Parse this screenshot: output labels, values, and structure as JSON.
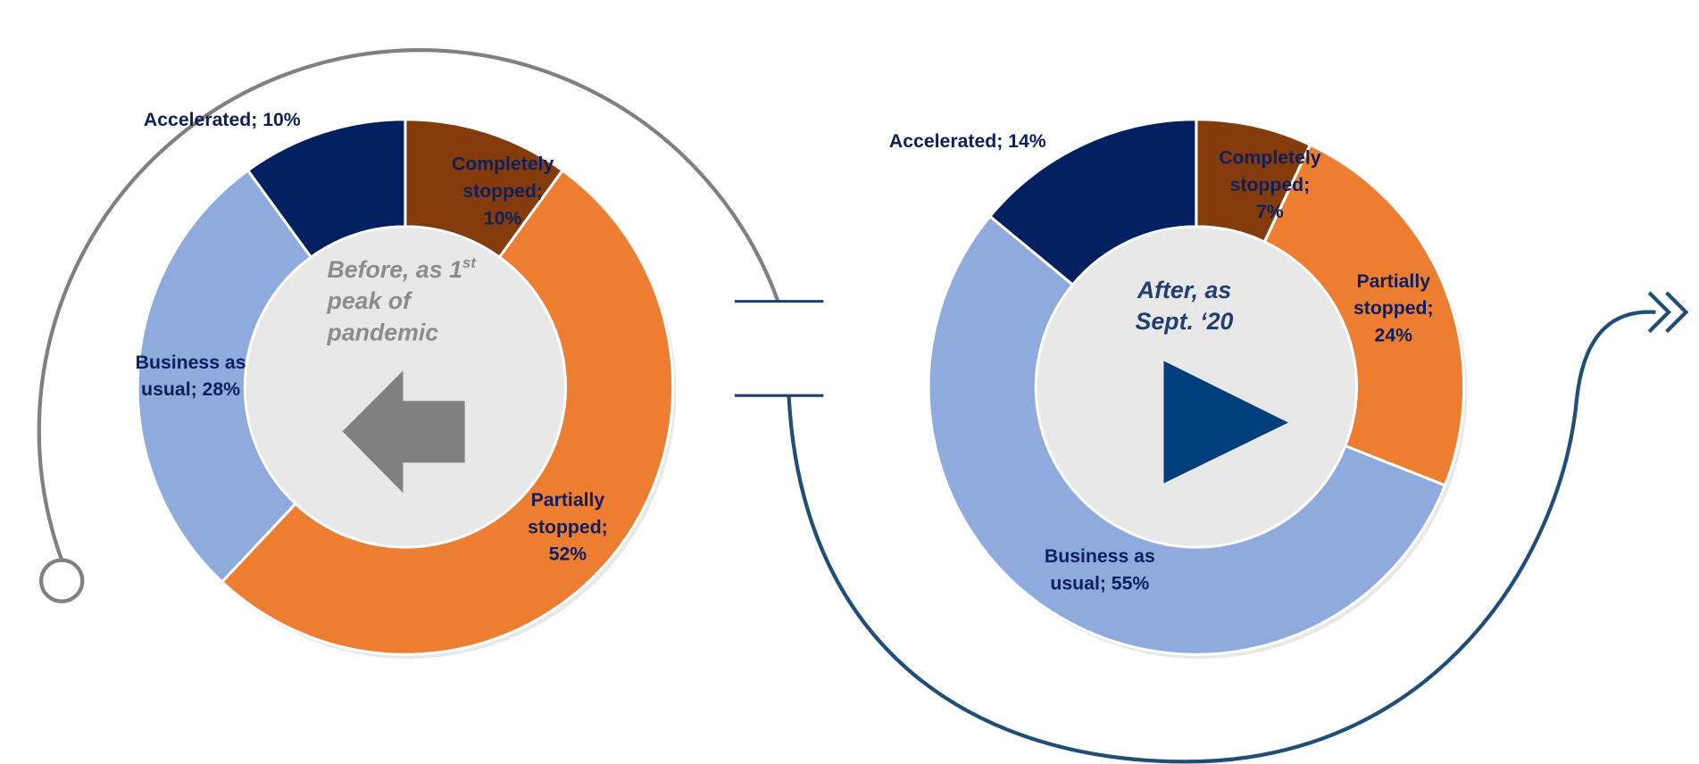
{
  "chart_data": [
    {
      "type": "donut",
      "center_label": [
        "Before, as 1",
        "peak of",
        "pandemic"
      ],
      "center_label_sup": "st",
      "center_color": "#8c8c8c",
      "values": [
        10,
        52,
        28,
        10
      ],
      "value_labels": [
        "Completely\nstopped;\n10%",
        "Partially\nstopped;\n52%",
        "Business as\nusual; 28%",
        "Accelerated;  10%"
      ],
      "colors": [
        "#843c0c",
        "#ed7d31",
        "#8faadc",
        "#002060"
      ]
    },
    {
      "type": "donut",
      "center_label": [
        "After, as",
        "Sept. ‘20"
      ],
      "center_color": "#1f3f73",
      "values": [
        7,
        24,
        55,
        14
      ],
      "value_labels": [
        "Completely\nstopped;\n7%",
        "Partially\nstopped;\n24%",
        "Business as\nusual; 55%",
        "Accelerated;  14%"
      ],
      "colors": [
        "#843c0c",
        "#ed7d31",
        "#8faadc",
        "#002060"
      ]
    }
  ]
}
